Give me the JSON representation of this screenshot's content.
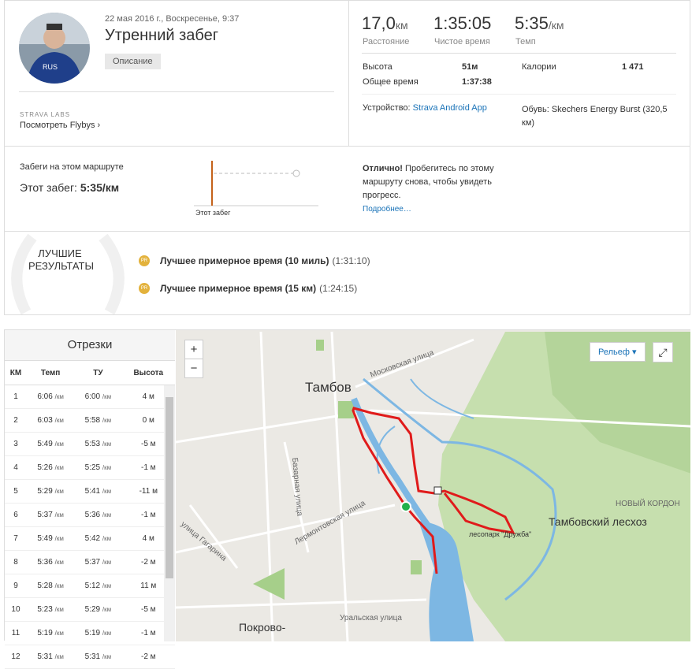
{
  "header": {
    "date": "22 мая 2016 г., Воскресенье, 9:37",
    "title": "Утренний забег",
    "description_button": "Описание",
    "labs": "STRAVA LABS",
    "flybys": "Посмотреть Flybys"
  },
  "stats": [
    {
      "value": "17,0",
      "unit": "км",
      "label": "Расстояние"
    },
    {
      "value": "1:35:05",
      "label": "Чистое время"
    },
    {
      "value": "5:35",
      "unit": "/км",
      "label": "Темп"
    }
  ],
  "details": {
    "elevation_label": "Высота",
    "elevation": "51м",
    "elapsed_label": "Общее время",
    "elapsed": "1:37:38",
    "calories_label": "Калории",
    "calories": "1 471",
    "device_label": "Устройство:",
    "device": "Strava Android App",
    "shoes_label": "Обувь:",
    "shoes": "Skechers Energy Burst (320,5 км)"
  },
  "route": {
    "heading": "Забеги на этом маршруте",
    "this_run_label": "Этот забег:",
    "this_run": "5:35/км",
    "chart_label": "Этот забег",
    "great": "Отлично!",
    "message": "Пробегитесь по этому маршруту снова, чтобы увидеть прогресс.",
    "more": "Подробнее…"
  },
  "best": {
    "heading": "ЛУЧШИЕ РЕЗУЛЬТАТЫ",
    "badge": "PR",
    "items": [
      {
        "label": "Лучшее примерное время (10 миль)",
        "time": "(1:31:10)"
      },
      {
        "label": "Лучшее примерное время (15 км)",
        "time": "(1:24:15)"
      }
    ]
  },
  "splits": {
    "title": "Отрезки",
    "unit": "/км",
    "headers": [
      "КМ",
      "Темп",
      "ТУ",
      "Высота"
    ],
    "rows": [
      [
        "1",
        "6:06",
        "6:00",
        "4 м"
      ],
      [
        "2",
        "6:03",
        "5:58",
        "0 м"
      ],
      [
        "3",
        "5:49",
        "5:53",
        "-5 м"
      ],
      [
        "4",
        "5:26",
        "5:25",
        "-1 м"
      ],
      [
        "5",
        "5:29",
        "5:41",
        "-11 м"
      ],
      [
        "6",
        "5:37",
        "5:36",
        "-1 м"
      ],
      [
        "7",
        "5:49",
        "5:42",
        "4 м"
      ],
      [
        "8",
        "5:36",
        "5:37",
        "-2 м"
      ],
      [
        "9",
        "5:28",
        "5:12",
        "11 м"
      ],
      [
        "10",
        "5:23",
        "5:29",
        "-5 м"
      ],
      [
        "11",
        "5:19",
        "5:19",
        "-1 м"
      ],
      [
        "12",
        "5:31",
        "5:31",
        "-2 м"
      ]
    ]
  },
  "map": {
    "zoom_in": "+",
    "zoom_out": "−",
    "layer": "Рельеф",
    "labels": {
      "city": "Тамбов",
      "moskovskaya": "Московская улица",
      "bazarnaya": "Базарная улица",
      "lermontovskaya": "Лермонтовская улица",
      "gagarina": "улица Гагарина",
      "leskhoz": "Тамбовский лесхоз",
      "kordon": "НОВЫЙ КОРДОН",
      "park": "лесопарк \"Дружба\"",
      "uralskaya": "Уральская улица",
      "pokrovo": "Покрово-"
    }
  }
}
